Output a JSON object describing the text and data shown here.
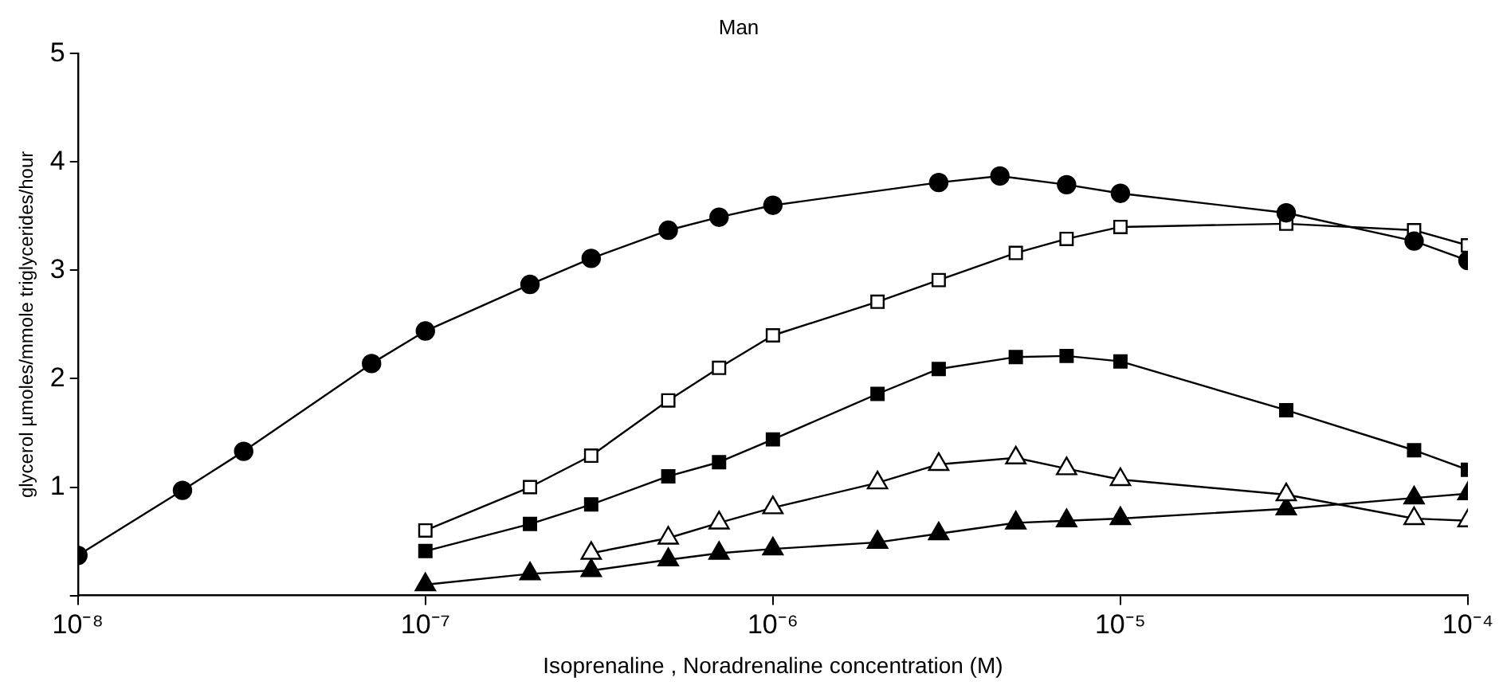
{
  "chart_data": {
    "type": "line",
    "title": "Man",
    "xlabel": "Isoprenaline , Noradrenaline concentration (M)",
    "ylabel": "glycerol µmoles/mmole triglycerides/hour",
    "log": "x",
    "grid": false,
    "legend": false,
    "line_style": "solid",
    "xlim": [
      1e-08,
      0.0001
    ],
    "xticks": [
      {
        "value": 1e-08,
        "label": "10⁻⁸"
      },
      {
        "value": 1e-07,
        "label": "10⁻⁷"
      },
      {
        "value": 1e-06,
        "label": "10⁻⁶"
      },
      {
        "value": 1e-05,
        "label": "10⁻⁵"
      },
      {
        "value": 0.0001,
        "label": "10⁻⁴"
      }
    ],
    "ylim": [
      0,
      5
    ],
    "yticks": [
      {
        "value": 0,
        "label": null
      },
      1,
      2,
      3,
      4,
      5
    ],
    "series": [
      {
        "color": "#000000",
        "marker": "circle",
        "x": [
          1e-08,
          2e-08,
          3e-08,
          7e-08,
          1e-07,
          2e-07,
          3e-07,
          5e-07,
          7e-07,
          1e-06,
          3e-06,
          4.5e-06,
          7e-06,
          1e-05,
          3e-05,
          7e-05,
          0.0001
        ],
        "values": [
          0.37,
          0.97,
          1.33,
          2.14,
          2.44,
          2.87,
          3.11,
          3.37,
          3.49,
          3.6,
          3.81,
          3.87,
          3.79,
          3.71,
          3.53,
          3.27,
          3.09
        ]
      },
      {
        "color": "#000000",
        "marker": "square",
        "x": [
          1e-07,
          2e-07,
          3e-07,
          5e-07,
          7e-07,
          1e-06,
          2e-06,
          3e-06,
          5e-06,
          7e-06,
          1e-05,
          3e-05,
          7e-05,
          0.0001
        ],
        "values": [
          0.6,
          1.0,
          1.29,
          1.8,
          2.1,
          2.4,
          2.71,
          2.91,
          3.16,
          3.29,
          3.4,
          3.43,
          3.37,
          3.23
        ]
      },
      {
        "color": "#000000",
        "marker": "square",
        "x": [
          1e-07,
          2e-07,
          3e-07,
          5e-07,
          7e-07,
          1e-06,
          2e-06,
          3e-06,
          5e-06,
          7e-06,
          1e-05,
          3e-05,
          7e-05,
          0.0001
        ],
        "values": [
          0.41,
          0.66,
          0.84,
          1.1,
          1.23,
          1.44,
          1.86,
          2.09,
          2.2,
          2.21,
          2.16,
          1.71,
          1.34,
          1.16
        ]
      },
      {
        "color": "#000000",
        "marker": "triangle",
        "x": [
          3e-07,
          5e-07,
          7e-07,
          1e-06,
          2e-06,
          3e-06,
          5e-06,
          7e-06,
          1e-05,
          3e-05,
          7e-05,
          0.0001
        ],
        "values": [
          0.39,
          0.53,
          0.67,
          0.81,
          1.04,
          1.21,
          1.27,
          1.17,
          1.07,
          0.93,
          0.71,
          0.69
        ]
      },
      {
        "color": "#000000",
        "marker": "triangle",
        "x": [
          1e-07,
          2e-07,
          3e-07,
          5e-07,
          7e-07,
          1e-06,
          2e-06,
          3e-06,
          5e-06,
          7e-06,
          1e-05,
          3e-05,
          7e-05,
          0.0001
        ],
        "values": [
          0.1,
          0.2,
          0.23,
          0.33,
          0.39,
          0.43,
          0.49,
          0.57,
          0.67,
          0.69,
          0.71,
          0.8,
          0.9,
          0.94
        ]
      }
    ]
  }
}
